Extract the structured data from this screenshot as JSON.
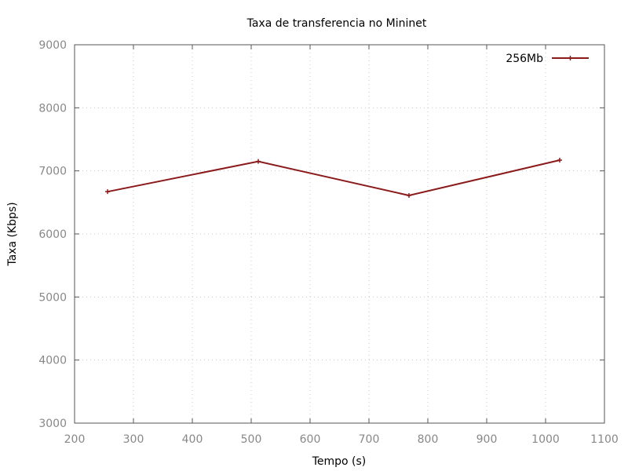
{
  "chart_data": {
    "type": "line",
    "title": "Taxa de transferencia no Mininet",
    "xlabel": "Tempo (s)",
    "ylabel": "Taxa (Kbps)",
    "xlim": [
      200,
      1100
    ],
    "ylim": [
      3000,
      9000
    ],
    "xticks": [
      200,
      300,
      400,
      500,
      600,
      700,
      800,
      900,
      1000,
      1100
    ],
    "yticks": [
      3000,
      4000,
      5000,
      6000,
      7000,
      8000,
      9000
    ],
    "grid": true,
    "legend_position": "top-right",
    "series": [
      {
        "name": "256Mb",
        "color": "#8b1a1a",
        "marker": "plus",
        "x": [
          256,
          512,
          768,
          1024
        ],
        "y": [
          6670,
          7150,
          6610,
          7170
        ]
      }
    ]
  }
}
